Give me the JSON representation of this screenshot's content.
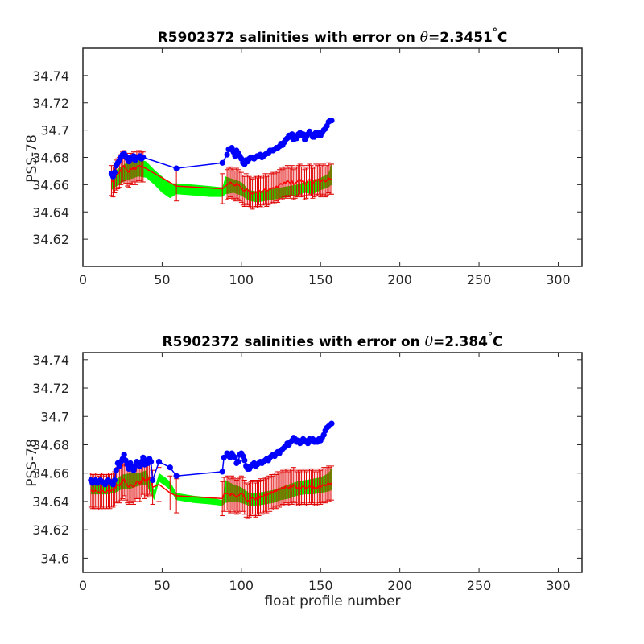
{
  "colors": {
    "float": "#0000ff",
    "mapped": "#ff0000",
    "error_bar": "#e00000",
    "envelope": "#00ff00",
    "axis": "#262626"
  },
  "chart_data": [
    {
      "type": "scatter",
      "title_prefix": "R5902372 salinities with error on ",
      "title_theta": "θ",
      "title_value": "=2.3451",
      "title_degree": "°",
      "title_unit": "C",
      "xlabel": "",
      "ylabel": "PSS-78",
      "xlim": [
        0,
        315
      ],
      "ylim": [
        34.6,
        34.76
      ],
      "xticks": [
        "0",
        "50",
        "100",
        "150",
        "200",
        "250",
        "300"
      ],
      "xtick_values": [
        0,
        50,
        100,
        150,
        200,
        250,
        300
      ],
      "yticks": [
        "34.62",
        "34.64",
        "34.66",
        "34.68",
        "34.7",
        "34.72",
        "34.74"
      ],
      "ytick_values": [
        34.62,
        34.64,
        34.66,
        34.68,
        34.7,
        34.72,
        34.74
      ],
      "float_salinity": {
        "x": [
          18,
          19,
          20,
          21,
          22,
          23,
          24,
          25,
          26,
          27,
          28,
          29,
          30,
          31,
          32,
          33,
          34,
          35,
          36,
          37,
          38,
          59,
          88,
          91,
          92,
          93,
          94,
          95,
          96,
          97,
          98,
          99,
          100,
          101,
          102,
          103,
          104,
          105,
          106,
          107,
          108,
          109,
          110,
          111,
          112,
          113,
          114,
          115,
          116,
          117,
          118,
          119,
          120,
          121,
          122,
          123,
          124,
          125,
          126,
          127,
          128,
          129,
          130,
          131,
          132,
          133,
          134,
          135,
          136,
          137,
          138,
          139,
          140,
          141,
          142,
          143,
          144,
          145,
          146,
          147,
          148,
          149,
          150,
          151,
          152,
          153,
          154,
          155,
          156,
          157
        ],
        "y": [
          34.668,
          34.666,
          34.669,
          34.674,
          34.676,
          34.678,
          34.68,
          34.682,
          34.683,
          34.681,
          34.679,
          34.677,
          34.68,
          34.679,
          34.681,
          34.678,
          34.68,
          34.68,
          34.681,
          34.679,
          34.68,
          34.672,
          34.676,
          34.682,
          34.686,
          34.686,
          34.687,
          34.684,
          34.681,
          34.685,
          34.683,
          34.681,
          34.679,
          34.676,
          34.675,
          34.678,
          34.677,
          34.679,
          34.68,
          34.68,
          34.679,
          34.68,
          34.681,
          34.681,
          34.682,
          34.68,
          34.681,
          34.682,
          34.683,
          34.683,
          34.685,
          34.685,
          34.685,
          34.686,
          34.687,
          34.687,
          34.688,
          34.69,
          34.689,
          34.691,
          34.693,
          34.694,
          34.696,
          34.695,
          34.697,
          34.693,
          34.695,
          34.694,
          34.697,
          34.698,
          34.696,
          34.697,
          34.693,
          34.695,
          34.697,
          34.699,
          34.697,
          34.695,
          34.695,
          34.698,
          34.696,
          34.698,
          34.696,
          34.698,
          34.7,
          34.701,
          34.703,
          34.706,
          34.707,
          34.707
        ]
      },
      "mapped_salinity": {
        "x": [
          18,
          19,
          20,
          21,
          22,
          23,
          24,
          25,
          26,
          27,
          28,
          29,
          30,
          31,
          32,
          33,
          34,
          35,
          36,
          37,
          38,
          59,
          88,
          91,
          92,
          93,
          94,
          95,
          96,
          97,
          98,
          99,
          100,
          101,
          102,
          103,
          104,
          105,
          106,
          107,
          108,
          109,
          110,
          111,
          112,
          113,
          114,
          115,
          116,
          117,
          118,
          119,
          120,
          121,
          122,
          123,
          124,
          125,
          126,
          127,
          128,
          129,
          130,
          131,
          132,
          133,
          134,
          135,
          136,
          137,
          138,
          139,
          140,
          141,
          142,
          143,
          144,
          145,
          146,
          147,
          148,
          149,
          150,
          151,
          152,
          153,
          154,
          155,
          156,
          157
        ],
        "y": [
          34.663,
          34.662,
          34.665,
          34.667,
          34.668,
          34.669,
          34.671,
          34.673,
          34.674,
          34.672,
          34.67,
          34.669,
          34.672,
          34.671,
          34.673,
          34.671,
          34.673,
          34.674,
          34.674,
          34.673,
          34.673,
          34.659,
          34.657,
          34.66,
          34.661,
          34.662,
          34.661,
          34.66,
          34.659,
          34.661,
          34.66,
          34.659,
          34.658,
          34.656,
          34.655,
          34.657,
          34.656,
          34.655,
          34.654,
          34.653,
          34.654,
          34.655,
          34.654,
          34.656,
          34.655,
          34.654,
          34.656,
          34.657,
          34.655,
          34.656,
          34.657,
          34.657,
          34.658,
          34.657,
          34.659,
          34.658,
          34.66,
          34.661,
          34.66,
          34.662,
          34.661,
          34.663,
          34.662,
          34.661,
          34.663,
          34.66,
          34.661,
          34.662,
          34.663,
          34.664,
          34.662,
          34.663,
          34.66,
          34.661,
          34.663,
          34.664,
          34.663,
          34.661,
          34.662,
          34.664,
          34.663,
          34.664,
          34.662,
          34.663,
          34.664,
          34.662,
          34.663,
          34.665,
          34.664,
          34.664
        ],
        "error": 0.011
      },
      "envelope": {
        "x": [
          18,
          25,
          30,
          35,
          40,
          45,
          50,
          55,
          59,
          70,
          80,
          88,
          90,
          95,
          100,
          105,
          110,
          115,
          120,
          125,
          130,
          135,
          140,
          145,
          150,
          155,
          157
        ],
        "lower": [
          34.656,
          34.662,
          34.664,
          34.666,
          34.665,
          34.66,
          34.654,
          34.65,
          34.653,
          34.652,
          34.651,
          34.651,
          34.653,
          34.654,
          34.652,
          34.648,
          34.647,
          34.648,
          34.649,
          34.65,
          34.651,
          34.652,
          34.654,
          34.653,
          34.656,
          34.658,
          34.66
        ],
        "upper": [
          34.668,
          34.674,
          34.678,
          34.679,
          34.677,
          34.671,
          34.666,
          34.661,
          34.661,
          34.66,
          34.659,
          34.658,
          34.666,
          34.664,
          34.662,
          34.656,
          34.655,
          34.656,
          34.657,
          34.658,
          34.659,
          34.66,
          34.662,
          34.663,
          34.665,
          34.668,
          34.676
        ]
      }
    },
    {
      "type": "scatter",
      "title_prefix": "R5902372 salinities with error on ",
      "title_theta": "θ",
      "title_value": "=2.384",
      "title_degree": "°",
      "title_unit": "C",
      "xlabel": "float profile number",
      "ylabel": "PSS-78",
      "xlim": [
        0,
        315
      ],
      "ylim": [
        34.59,
        34.745
      ],
      "xticks": [
        "0",
        "50",
        "100",
        "150",
        "200",
        "250",
        "300"
      ],
      "xtick_values": [
        0,
        50,
        100,
        150,
        200,
        250,
        300
      ],
      "yticks": [
        "34.6",
        "34.62",
        "34.64",
        "34.66",
        "34.68",
        "34.7",
        "34.72",
        "34.74"
      ],
      "ytick_values": [
        34.6,
        34.62,
        34.64,
        34.66,
        34.68,
        34.7,
        34.72,
        34.74
      ],
      "float_salinity": {
        "x": [
          5,
          6,
          7,
          8,
          9,
          10,
          11,
          12,
          13,
          14,
          15,
          16,
          17,
          18,
          19,
          20,
          21,
          22,
          23,
          24,
          25,
          26,
          27,
          28,
          29,
          30,
          31,
          32,
          33,
          34,
          35,
          36,
          37,
          38,
          39,
          40,
          41,
          42,
          43,
          44,
          48,
          55,
          59,
          88,
          89,
          91,
          92,
          93,
          94,
          95,
          96,
          97,
          98,
          99,
          100,
          101,
          102,
          103,
          104,
          105,
          106,
          107,
          108,
          109,
          110,
          111,
          112,
          113,
          114,
          115,
          116,
          117,
          118,
          119,
          120,
          121,
          122,
          123,
          124,
          125,
          126,
          127,
          128,
          129,
          130,
          131,
          132,
          133,
          134,
          135,
          136,
          137,
          138,
          139,
          140,
          141,
          142,
          143,
          144,
          145,
          146,
          147,
          148,
          149,
          150,
          151,
          152,
          153,
          154,
          155,
          156,
          157
        ],
        "y": [
          34.655,
          34.653,
          34.654,
          34.655,
          34.653,
          34.654,
          34.655,
          34.654,
          34.653,
          34.652,
          34.654,
          34.655,
          34.654,
          34.653,
          34.652,
          34.655,
          34.662,
          34.667,
          34.665,
          34.668,
          34.67,
          34.673,
          34.669,
          34.666,
          34.663,
          34.667,
          34.664,
          34.662,
          34.665,
          34.668,
          34.667,
          34.665,
          34.668,
          34.671,
          34.666,
          34.669,
          34.667,
          34.67,
          34.668,
          34.655,
          34.668,
          34.664,
          34.658,
          34.661,
          34.671,
          34.674,
          34.672,
          34.671,
          34.674,
          34.672,
          34.671,
          34.667,
          34.668,
          34.673,
          34.674,
          34.672,
          34.669,
          34.665,
          34.663,
          34.663,
          34.665,
          34.666,
          34.667,
          34.665,
          34.666,
          34.667,
          34.668,
          34.667,
          34.668,
          34.669,
          34.67,
          34.669,
          34.671,
          34.672,
          34.673,
          34.672,
          34.674,
          34.675,
          34.674,
          34.676,
          34.677,
          34.678,
          34.679,
          34.681,
          34.68,
          34.682,
          34.683,
          34.685,
          34.684,
          34.682,
          34.683,
          34.681,
          34.682,
          34.684,
          34.683,
          34.682,
          34.681,
          34.684,
          34.683,
          34.684,
          34.682,
          34.683,
          34.682,
          34.684,
          34.683,
          34.685,
          34.687,
          34.69,
          34.692,
          34.693,
          34.694,
          34.695
        ]
      },
      "mapped_salinity": {
        "x": [
          5,
          6,
          7,
          8,
          9,
          10,
          11,
          12,
          13,
          14,
          15,
          16,
          17,
          18,
          19,
          20,
          21,
          22,
          23,
          24,
          25,
          26,
          27,
          28,
          29,
          30,
          31,
          32,
          33,
          34,
          35,
          36,
          37,
          38,
          39,
          40,
          41,
          42,
          43,
          44,
          48,
          55,
          59,
          88,
          89,
          91,
          92,
          93,
          94,
          95,
          96,
          97,
          98,
          99,
          100,
          101,
          102,
          103,
          104,
          105,
          106,
          107,
          108,
          109,
          110,
          111,
          112,
          113,
          114,
          115,
          116,
          117,
          118,
          119,
          120,
          121,
          122,
          123,
          124,
          125,
          126,
          127,
          128,
          129,
          130,
          131,
          132,
          133,
          134,
          135,
          136,
          137,
          138,
          139,
          140,
          141,
          142,
          143,
          144,
          145,
          146,
          147,
          148,
          149,
          150,
          151,
          152,
          153,
          154,
          155,
          156,
          157
        ],
        "y": [
          34.648,
          34.647,
          34.647,
          34.648,
          34.647,
          34.646,
          34.647,
          34.648,
          34.647,
          34.646,
          34.647,
          34.648,
          34.647,
          34.648,
          34.648,
          34.649,
          34.651,
          34.652,
          34.651,
          34.653,
          34.654,
          34.656,
          34.653,
          34.651,
          34.65,
          34.652,
          34.651,
          34.65,
          34.652,
          34.654,
          34.654,
          34.652,
          34.655,
          34.657,
          34.654,
          34.656,
          34.655,
          34.657,
          34.656,
          34.65,
          34.652,
          34.646,
          34.644,
          34.642,
          34.645,
          34.646,
          34.645,
          34.644,
          34.646,
          34.645,
          34.644,
          34.643,
          34.644,
          34.645,
          34.646,
          34.645,
          34.643,
          34.641,
          34.64,
          34.641,
          34.642,
          34.643,
          34.642,
          34.641,
          34.643,
          34.642,
          34.644,
          34.643,
          34.644,
          34.645,
          34.644,
          34.646,
          34.645,
          34.647,
          34.646,
          34.648,
          34.647,
          34.649,
          34.648,
          34.649,
          34.65,
          34.649,
          34.651,
          34.65,
          34.649,
          34.651,
          34.65,
          34.652,
          34.651,
          34.649,
          34.65,
          34.649,
          34.65,
          34.651,
          34.65,
          34.649,
          34.65,
          34.651,
          34.65,
          34.651,
          34.649,
          34.65,
          34.649,
          34.651,
          34.65,
          34.651,
          34.652,
          34.651,
          34.652,
          34.653,
          34.652,
          34.653
        ],
        "error": 0.012
      },
      "envelope": {
        "x": [
          5,
          10,
          15,
          20,
          25,
          30,
          35,
          40,
          45,
          48,
          52,
          55,
          59,
          70,
          80,
          88,
          90,
          95,
          100,
          105,
          110,
          115,
          120,
          125,
          130,
          135,
          140,
          145,
          150,
          155,
          157
        ],
        "lower": [
          34.645,
          34.645,
          34.645,
          34.646,
          34.649,
          34.649,
          34.651,
          34.652,
          34.641,
          34.654,
          34.651,
          34.648,
          34.641,
          34.639,
          34.638,
          34.637,
          34.639,
          34.64,
          34.639,
          34.637,
          34.637,
          34.638,
          34.639,
          34.641,
          34.642,
          34.644,
          34.645,
          34.645,
          34.646,
          34.647,
          34.648
        ],
        "upper": [
          34.653,
          34.652,
          34.652,
          34.655,
          34.659,
          34.66,
          34.66,
          34.662,
          34.648,
          34.66,
          34.657,
          34.654,
          34.646,
          34.644,
          34.643,
          34.641,
          34.655,
          34.652,
          34.65,
          34.646,
          34.646,
          34.647,
          34.648,
          34.65,
          34.652,
          34.654,
          34.655,
          34.656,
          34.657,
          34.66,
          34.664
        ]
      }
    }
  ]
}
